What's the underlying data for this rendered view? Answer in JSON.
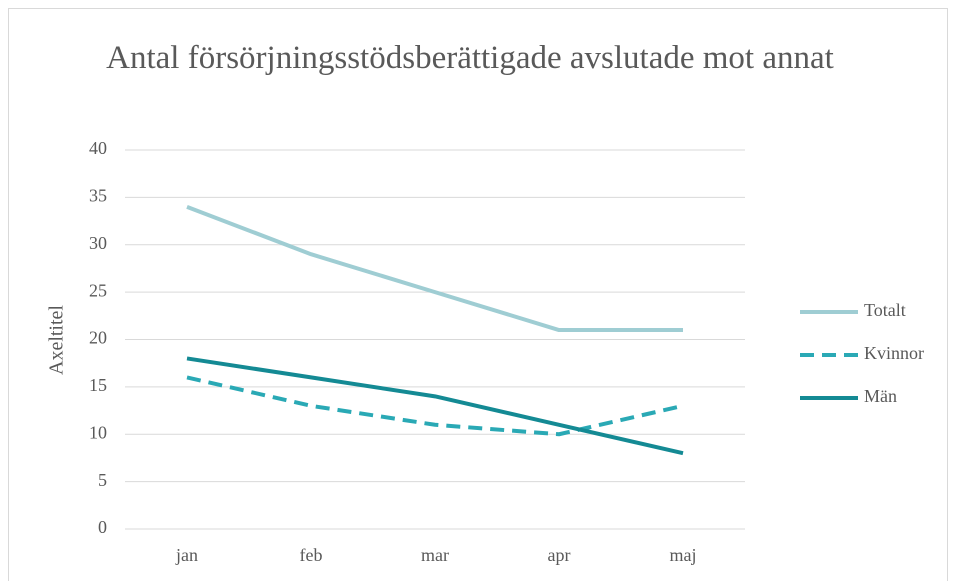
{
  "chart_data": {
    "type": "line",
    "title": "Antal försörjningsstödsberättigade avslutade mot annat",
    "y_label": "Axeltitel",
    "categories": [
      "jan",
      "feb",
      "mar",
      "apr",
      "maj"
    ],
    "series": [
      {
        "name": "Totalt",
        "color": "#9fcdd3",
        "values": [
          34,
          29,
          25,
          21,
          21
        ]
      },
      {
        "name": "Kvinnor",
        "color": "#2aa9b5",
        "dashed": true,
        "values": [
          16,
          13,
          11,
          10,
          13
        ]
      },
      {
        "name": "Män",
        "color": "#148a94",
        "values": [
          18,
          16,
          14,
          11,
          8
        ]
      }
    ],
    "ylim": [
      0,
      40
    ],
    "yticks": [
      0,
      5,
      10,
      15,
      20,
      25,
      30,
      35,
      40
    ],
    "grid": true,
    "legend": "right"
  }
}
